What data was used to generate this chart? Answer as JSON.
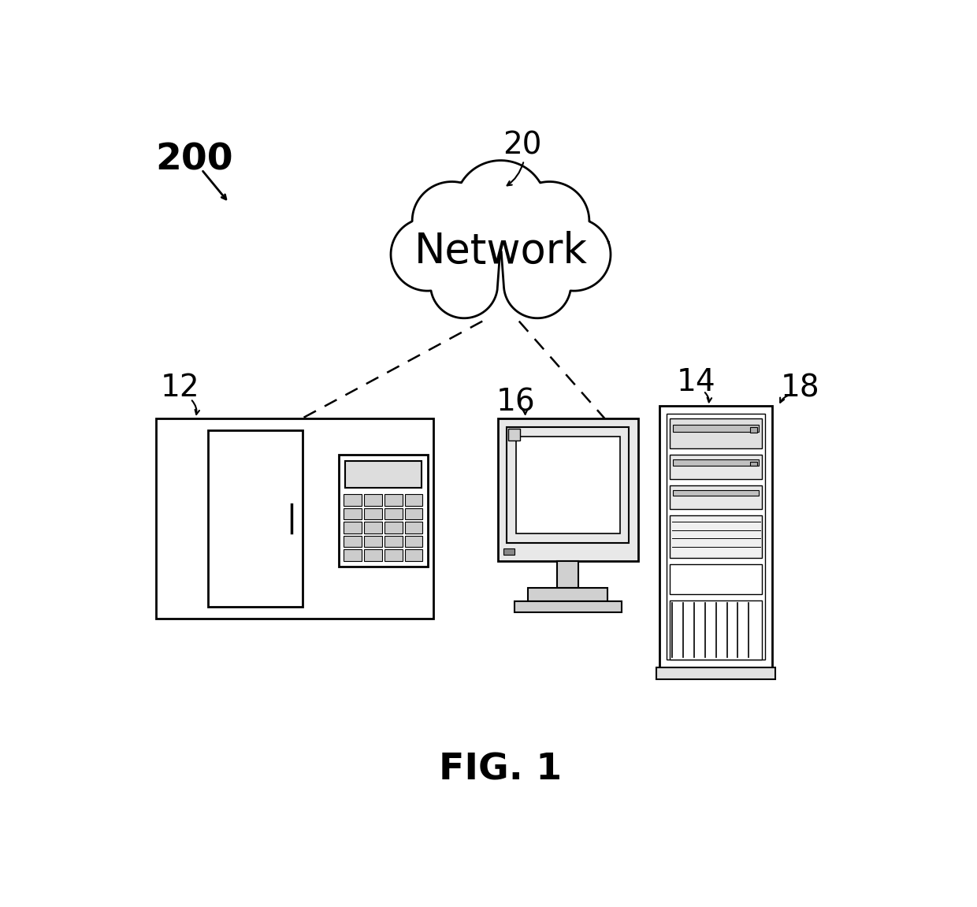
{
  "background_color": "#ffffff",
  "fig_label": "200",
  "fig_caption": "FIG. 1",
  "cloud_label": "20",
  "network_text": "Network",
  "panel_label": "12",
  "computer_label": "16",
  "server_label": "14",
  "server_label2": "18"
}
